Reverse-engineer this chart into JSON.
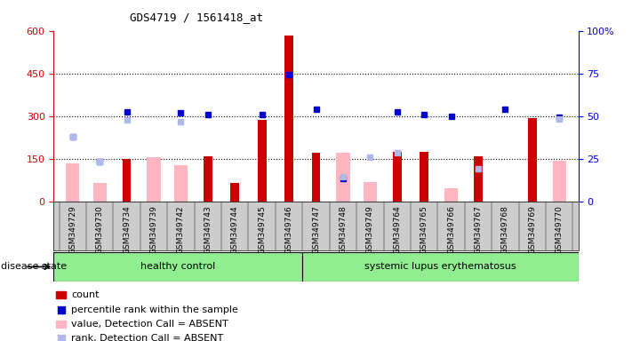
{
  "title": "GDS4719 / 1561418_at",
  "samples": [
    "GSM349729",
    "GSM349730",
    "GSM349734",
    "GSM349739",
    "GSM349742",
    "GSM349743",
    "GSM349744",
    "GSM349745",
    "GSM349746",
    "GSM349747",
    "GSM349748",
    "GSM349749",
    "GSM349764",
    "GSM349765",
    "GSM349766",
    "GSM349767",
    "GSM349768",
    "GSM349769",
    "GSM349770"
  ],
  "count": [
    null,
    null,
    150,
    null,
    null,
    158,
    65,
    285,
    582,
    170,
    null,
    null,
    175,
    175,
    null,
    158,
    null,
    292,
    null
  ],
  "percentile_rank": [
    228,
    138,
    315,
    null,
    310,
    305,
    null,
    305,
    445,
    325,
    80,
    null,
    315,
    305,
    300,
    null,
    325,
    null,
    295
  ],
  "value_absent": [
    132,
    65,
    null,
    155,
    128,
    null,
    null,
    null,
    null,
    null,
    170,
    68,
    null,
    null,
    45,
    null,
    null,
    null,
    142
  ],
  "rank_absent": [
    228,
    138,
    285,
    null,
    280,
    null,
    null,
    null,
    null,
    null,
    85,
    155,
    170,
    null,
    null,
    115,
    null,
    null,
    290
  ],
  "healthy_control_count": 9,
  "ylim": [
    0,
    600
  ],
  "yticks_left": [
    0,
    150,
    300,
    450,
    600
  ],
  "yticks_right_labels": [
    "0",
    "25",
    "50",
    "75",
    "100%"
  ],
  "yticks_right_vals": [
    0,
    150,
    300,
    450,
    600
  ],
  "group_labels": [
    "healthy control",
    "systemic lupus erythematosus"
  ],
  "legend": [
    "count",
    "percentile rank within the sample",
    "value, Detection Call = ABSENT",
    "rank, Detection Call = ABSENT"
  ],
  "bar_color_count": "#cc0000",
  "bar_color_absent": "#ffb6c1",
  "dot_color_rank": "#0000cd",
  "dot_color_rank_absent": "#b0b8e8",
  "left_axis_color": "#cc0000",
  "right_axis_color": "#0000cd",
  "group_bg_color": "#90ee90",
  "xtick_bg_color": "#cccccc"
}
